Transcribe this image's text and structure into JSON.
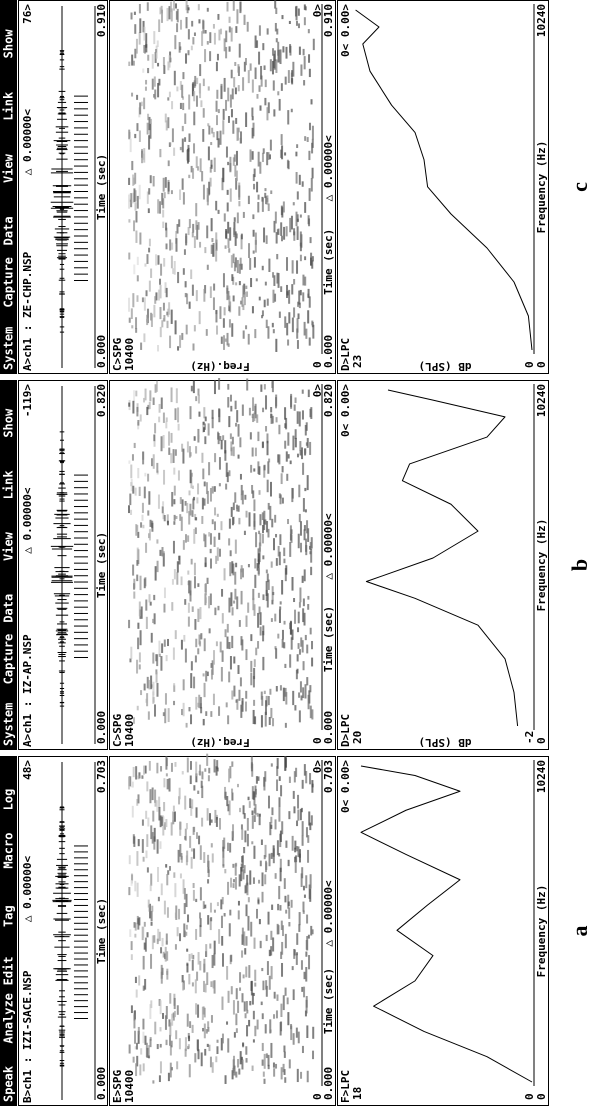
{
  "panels": [
    {
      "label": "a",
      "menu": [
        "Speak",
        "Analyze",
        "Edit",
        "Tag",
        "Macro",
        "Log"
      ],
      "waveform": {
        "title": "B>ch1 : IZI-SACE.NSP",
        "cursor": "△ 0.00000<",
        "value": "48>",
        "start": "0.000",
        "axis": "Time (sec)",
        "end": "0.703"
      },
      "spectrogram": {
        "title": "E>SPG",
        "top": "10400",
        "bottom": "0",
        "cursor": "△ 0.00000<",
        "value": "0>",
        "start": "0.000",
        "axis": "Time (sec)",
        "end": "0.703"
      },
      "lpc": {
        "title": "F>LPC",
        "top": "18",
        "bottom": "0",
        "start": "0",
        "axis": "Frequency (Hz)",
        "end": "10240",
        "value": "0< 0.00>"
      }
    },
    {
      "label": "b",
      "menu": [
        "System",
        "Capture",
        "Data",
        "View",
        "Link",
        "Show"
      ],
      "waveform": {
        "title": "A>ch1 : IZ-AP.NSP",
        "cursor": "△ 0.00000<",
        "value": "-119>",
        "start": "0.000",
        "axis": "Time (sec)",
        "end": "0.820"
      },
      "spectrogram": {
        "title": "C>SPG",
        "top": "10400",
        "ylabel": "Freq.(Hz)",
        "bottom": "0",
        "cursor": "△ 0.00000<",
        "value": "0>",
        "start": "0.000",
        "axis": "Time (sec)",
        "end": "0.820"
      },
      "lpc": {
        "title": "D>LPC",
        "top": "20",
        "ylabel": "dB (SPL)",
        "bottom": "-2",
        "start": "0",
        "axis": "Frequency (Hz)",
        "end": "10240",
        "value": "0< 0.00>"
      }
    },
    {
      "label": "c",
      "menu": [
        "System",
        "Capture",
        "Data",
        "View",
        "Link",
        "Show"
      ],
      "waveform": {
        "title": "A>ch1 : ZE-CHP.NSP",
        "cursor": "△ 0.00000<",
        "value": "76>",
        "start": "0.000",
        "axis": "Time (sec)",
        "end": "0.910"
      },
      "spectrogram": {
        "title": "C>SPG",
        "top": "10400",
        "ylabel": "Freq.(Hz)",
        "bottom": "0",
        "cursor": "△ 0.00000<",
        "value": "0>",
        "start": "0.000",
        "axis": "Time (sec)",
        "end": "0.910"
      },
      "lpc": {
        "title": "D>LPC",
        "top": "23",
        "ylabel": "dB (SPL)",
        "bottom": "0",
        "start": "0",
        "axis": "Frequency (Hz)",
        "end": "10240",
        "value": "0< 0.00>"
      }
    }
  ]
}
